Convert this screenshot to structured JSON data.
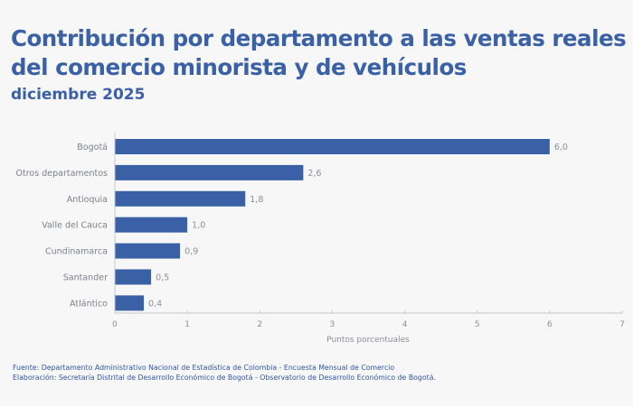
{
  "chart_data": {
    "type": "bar",
    "orientation": "horizontal",
    "title": "Contribución por departamento a las ventas reales del comercio minorista y de vehículos",
    "subtitle": "diciembre 2025",
    "categories": [
      "Bogotá",
      "Otros departamentos",
      "Antioquia",
      "Valle del Cauca",
      "Cundinamarca",
      "Santander",
      "Atlántico"
    ],
    "values": [
      6.0,
      2.6,
      1.8,
      1.0,
      0.9,
      0.5,
      0.4
    ],
    "value_labels": [
      "6,0",
      "2,6",
      "1,8",
      "1,0",
      "0,9",
      "0,5",
      "0,4"
    ],
    "xlabel": "Puntos porcentuales",
    "ylabel": "",
    "xlim": [
      0,
      7
    ],
    "xticks": [
      0,
      1,
      2,
      3,
      4,
      5,
      6,
      7
    ],
    "grid": false,
    "legend": "none",
    "bar_color": "#3a60a6"
  },
  "footer": {
    "source": "Fuente: Departamento Administrativo Nacional de Estadística de Colombia - Encuesta Mensual de Comercio",
    "elaboration": "Elaboración: Secretaría Distrital de Desarrollo Económico de Bogotá - Observatorio de Desarrollo Económico de Bogotá."
  }
}
